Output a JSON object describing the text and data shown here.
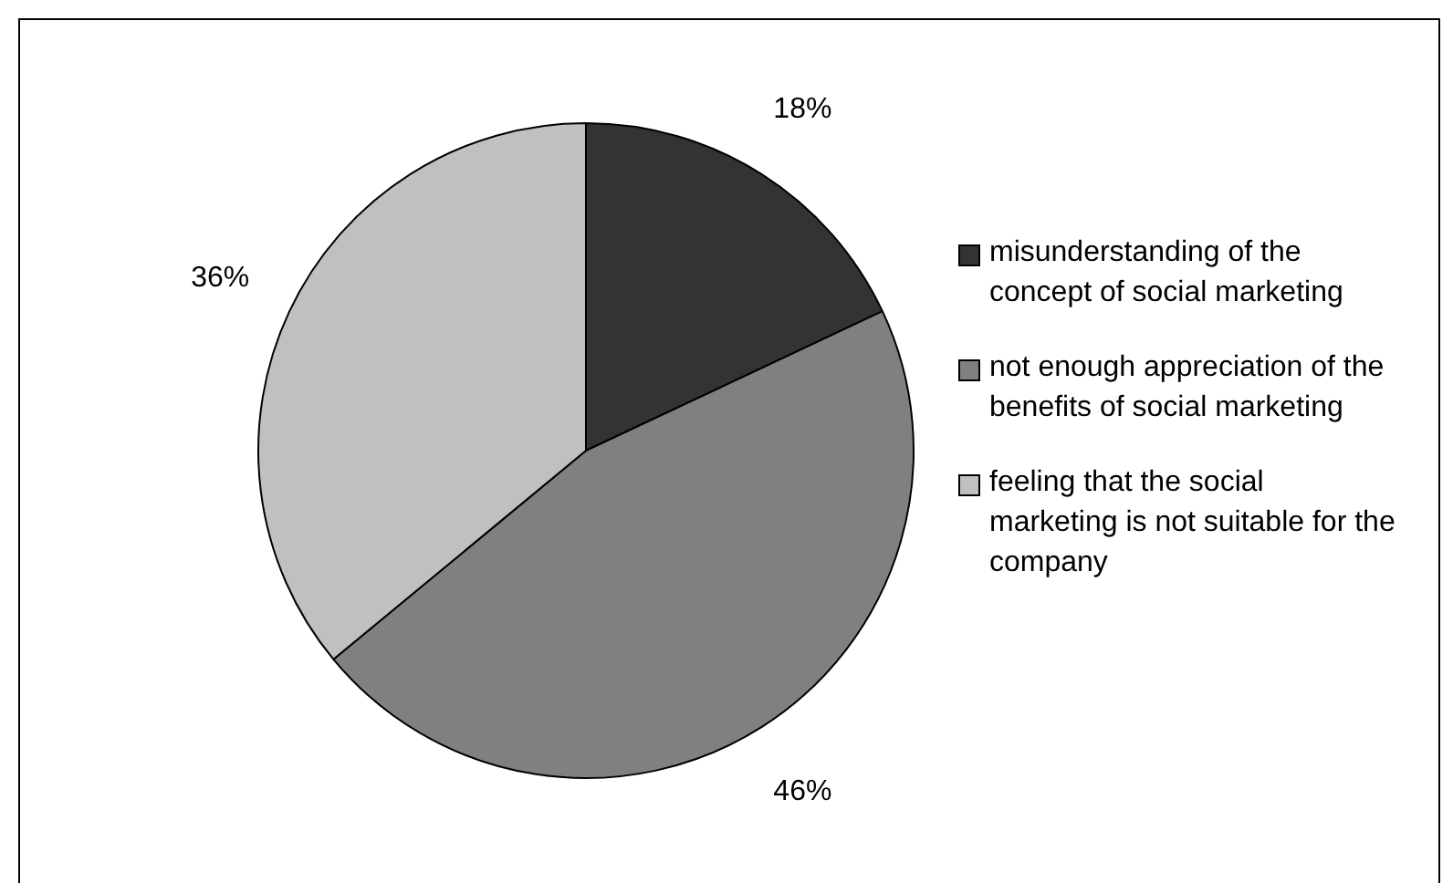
{
  "chart_data": {
    "type": "pie",
    "categories": [
      "misunderstanding of the concept of social marketing",
      "not enough appreciation of the benefits of social marketing",
      "feeling that the social marketing is not suitable for the company"
    ],
    "values": [
      18,
      46,
      36
    ],
    "value_labels": [
      "18%",
      "46%",
      "36%"
    ],
    "colors": [
      "#333333",
      "#808080",
      "#c0c0c0"
    ],
    "legend": "right"
  }
}
